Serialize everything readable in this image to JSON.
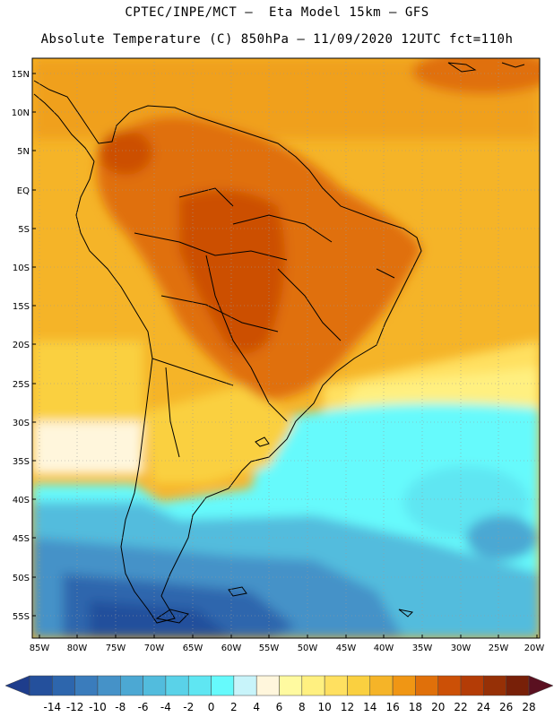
{
  "header": {
    "title_line1": "CPTEC/INPE/MCT –  Eta Model 15km – GFS",
    "title_line2": "Absolute Temperature (C) 850hPa – 11/09/2020 12UTC fct=110h"
  },
  "axes": {
    "lat_labels": [
      "15N",
      "10N",
      "5N",
      "EQ",
      "5S",
      "10S",
      "15S",
      "20S",
      "25S",
      "30S",
      "35S",
      "40S",
      "45S",
      "50S",
      "55S"
    ],
    "lon_labels": [
      "85W",
      "80W",
      "75W",
      "70W",
      "65W",
      "60W",
      "55W",
      "50W",
      "45W",
      "40W",
      "35W",
      "30W",
      "25W",
      "20W"
    ]
  },
  "colorbar": {
    "labels": [
      "-14",
      "-12",
      "-10",
      "-8",
      "-6",
      "-4",
      "-2",
      "0",
      "2",
      "4",
      "6",
      "8",
      "10",
      "12",
      "14",
      "16",
      "18",
      "20",
      "22",
      "24",
      "26",
      "28"
    ],
    "colors": [
      "#1e3d8c",
      "#24509c",
      "#2d66ad",
      "#3a7cbc",
      "#4592c8",
      "#4ca8d3",
      "#52bcdd",
      "#5ad2e8",
      "#5fe6f2",
      "#66fafc",
      "#c8f4fa",
      "#fff6dc",
      "#fffaa0",
      "#fff080",
      "#ffe060",
      "#fad040",
      "#f5b428",
      "#f09614",
      "#e0700a",
      "#cc5006",
      "#b43c06",
      "#963006",
      "#782008",
      "#5a1020"
    ]
  }
}
